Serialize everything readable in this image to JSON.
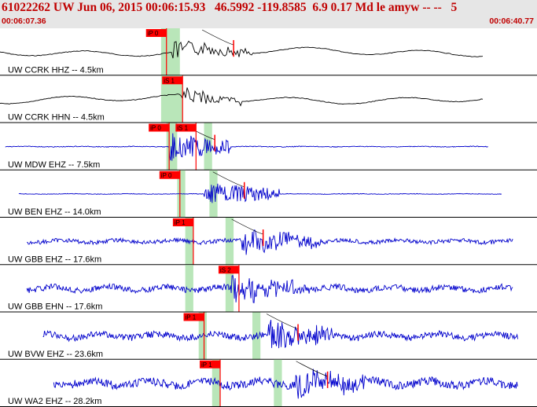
{
  "header": {
    "title": "61022262 UW Jun 06, 2015 00:06:15.93   46.5992 -119.8585  6.9 0.17 Md le amyw -- --   5",
    "start_time": "00:06:07.36",
    "end_time": "00:06:40.77"
  },
  "colors": {
    "header_text": "#c00000",
    "header_bg": "#e6e6e6",
    "trace_black": "#000000",
    "trace_blue": "#0000cc",
    "pick": "#ff0000",
    "window": "#b9e6b9"
  },
  "traces": [
    {
      "label": "UW CCRK HHZ -- 4.5km",
      "color": "black",
      "start": 0.0,
      "end": 0.9,
      "amp": 0.35,
      "onset": 0.32,
      "burst": 0.62,
      "burst_end": 0.47,
      "windows": [
        0.3,
        0.335
      ],
      "picks": [
        {
          "label": "iP 0",
          "pos": 0.31
        }
      ],
      "extra_marks": [
        0.435
      ]
    },
    {
      "label": "UW CCRK HHN -- 4.5km",
      "color": "black",
      "start": 0.0,
      "end": 0.9,
      "amp": 0.22,
      "onset": 0.33,
      "burst": 0.55,
      "burst_end": 0.45,
      "windows": [
        0.3,
        0.34
      ],
      "picks": [
        {
          "label": "iS 1",
          "pos": 0.34
        }
      ],
      "extra_marks": []
    },
    {
      "label": "UW MDW EHZ -- 7.5km",
      "color": "blue",
      "start": 0.01,
      "end": 0.91,
      "amp": 0.06,
      "onset": 0.315,
      "burst": 0.9,
      "burst_end": 0.43,
      "windows": [
        0.31,
        0.33,
        0.38,
        0.395
      ],
      "picks": [
        {
          "label": "iP 0",
          "pos": 0.315
        },
        {
          "label": "iS 1",
          "pos": 0.365
        }
      ],
      "extra_marks": [
        0.4
      ]
    },
    {
      "label": "UW BEN EHZ -- 14.0km",
      "color": "blue",
      "start": 0.035,
      "end": 0.935,
      "amp": 0.05,
      "onset": 0.38,
      "burst": 0.8,
      "burst_end": 0.52,
      "windows": [
        0.33,
        0.345,
        0.39,
        0.405
      ],
      "picks": [
        {
          "label": "iP 0",
          "pos": 0.335
        }
      ],
      "extra_marks": [
        0.455
      ]
    },
    {
      "label": "UW GBB EHZ -- 17.6km",
      "color": "blue",
      "start": 0.05,
      "end": 0.955,
      "amp": 0.35,
      "onset": 0.45,
      "burst": 0.9,
      "burst_end": 0.6,
      "windows": [
        0.345,
        0.36,
        0.42,
        0.435
      ],
      "picks": [
        {
          "label": "iP 1",
          "pos": 0.36
        }
      ],
      "extra_marks": [
        0.49
      ]
    },
    {
      "label": "UW GBB EHN -- 17.6km",
      "color": "blue",
      "start": 0.05,
      "end": 0.955,
      "amp": 0.5,
      "onset": 0.43,
      "burst": 0.85,
      "burst_end": 0.58,
      "windows": [
        0.345,
        0.36,
        0.42,
        0.435
      ],
      "picks": [
        {
          "label": "iS 2",
          "pos": 0.445
        }
      ],
      "extra_marks": []
    },
    {
      "label": "UW BVW EHZ -- 23.6km",
      "color": "blue",
      "start": 0.08,
      "end": 0.965,
      "amp": 0.55,
      "onset": 0.5,
      "burst": 0.9,
      "burst_end": 0.62,
      "windows": [
        0.37,
        0.385,
        0.47,
        0.485
      ],
      "picks": [
        {
          "label": "iP 1",
          "pos": 0.38
        }
      ],
      "extra_marks": [
        0.555
      ]
    },
    {
      "label": "UW WA2 EHZ -- 28.2km",
      "color": "blue",
      "start": 0.1,
      "end": 0.965,
      "amp": 0.7,
      "onset": 0.55,
      "burst": 0.95,
      "burst_end": 0.68,
      "windows": [
        0.395,
        0.41,
        0.51,
        0.525
      ],
      "picks": [
        {
          "label": "iP 1",
          "pos": 0.41
        }
      ],
      "extra_marks": [
        0.61
      ]
    }
  ]
}
